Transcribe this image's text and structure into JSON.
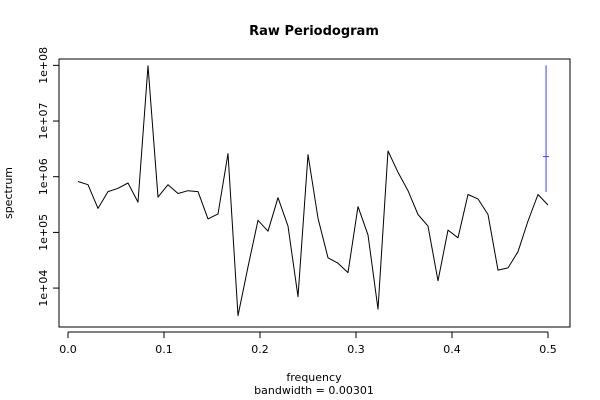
{
  "chart_data": {
    "type": "line",
    "title": "Raw Periodogram",
    "xlabel": "frequency",
    "xsublabel": "bandwidth = 0.00301",
    "ylabel": "spectrum",
    "y_scale": "log",
    "xlim": [
      0,
      0.5
    ],
    "ylim": [
      2000,
      130000000
    ],
    "x_ticks": [
      0.0,
      0.1,
      0.2,
      0.3,
      0.4,
      0.5
    ],
    "x_tick_labels": [
      "0.0",
      "0.1",
      "0.2",
      "0.3",
      "0.4",
      "0.5"
    ],
    "y_ticks": [
      10000,
      100000,
      1000000,
      10000000,
      100000000
    ],
    "y_tick_labels": [
      "1e+04",
      "1e+05",
      "1e+06",
      "1e+07",
      "1e+08"
    ],
    "grid": false,
    "line_color": "#000000",
    "series": [
      {
        "x": [
          0.0104,
          0.0208,
          0.0313,
          0.0417,
          0.0521,
          0.0625,
          0.0729,
          0.0833,
          0.0938,
          0.1042,
          0.1146,
          0.125,
          0.1354,
          0.1458,
          0.1563,
          0.1667,
          0.1771,
          0.1875,
          0.1979,
          0.2083,
          0.2188,
          0.2292,
          0.2396,
          0.25,
          0.2604,
          0.2708,
          0.2813,
          0.2917,
          0.3021,
          0.3125,
          0.3229,
          0.3333,
          0.3438,
          0.3542,
          0.3646,
          0.375,
          0.3854,
          0.3958,
          0.4063,
          0.4167,
          0.4271,
          0.4375,
          0.4479,
          0.4583,
          0.4688,
          0.4792,
          0.4896,
          0.5
        ],
        "y": [
          820000,
          720000,
          270000,
          540000,
          620000,
          770000,
          350000,
          98000000,
          430000,
          720000,
          500000,
          560000,
          540000,
          175000,
          215000,
          2600000,
          3200,
          24000,
          165000,
          105000,
          420000,
          130000,
          7000,
          2500000,
          180000,
          35000,
          28000,
          19000,
          290000,
          90000,
          4200,
          2900000,
          1200000,
          560000,
          210000,
          130000,
          13500,
          110000,
          80000,
          480000,
          400000,
          210000,
          21000,
          23000,
          45000,
          160000,
          480000,
          310000
        ]
      }
    ],
    "ci_bar": {
      "x": 0.498,
      "y_low": 530000,
      "y_high": 100000000,
      "y_center": 2300000,
      "color": "#4040ff"
    }
  }
}
